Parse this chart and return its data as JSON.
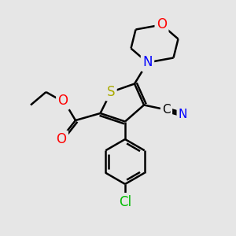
{
  "background_color": "#e6e6e6",
  "atom_colors": {
    "S": "#aaaa00",
    "O": "#ff0000",
    "N": "#0000ff",
    "Cl": "#00bb00",
    "C": "#000000"
  },
  "bond_color": "#000000",
  "bond_width": 1.8,
  "font_size_atoms": 11
}
